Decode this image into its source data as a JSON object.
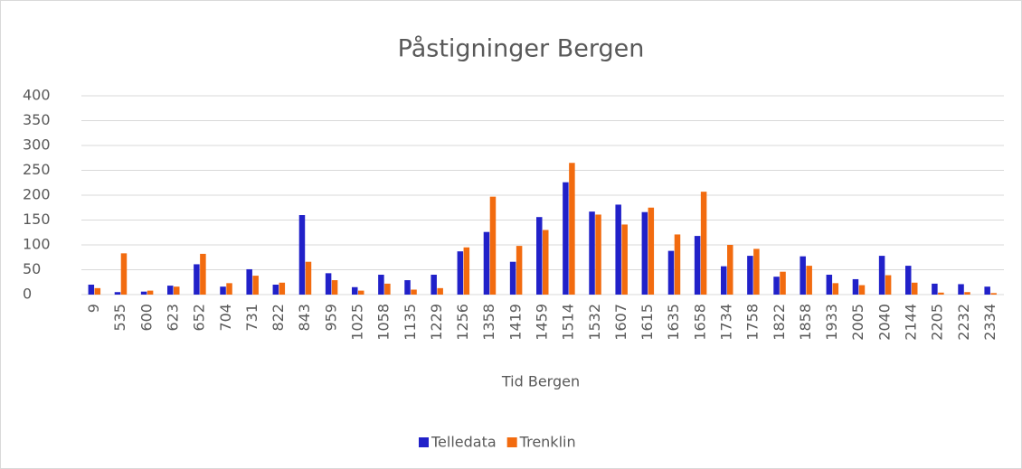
{
  "chart_data": {
    "type": "bar",
    "title": "Påstigninger Bergen",
    "x_label": "Tid Bergen",
    "categories": [
      "9",
      "535",
      "600",
      "623",
      "652",
      "704",
      "731",
      "822",
      "843",
      "959",
      "1025",
      "1058",
      "1135",
      "1229",
      "1256",
      "1358",
      "1419",
      "1459",
      "1514",
      "1532",
      "1607",
      "1615",
      "1635",
      "1658",
      "1734",
      "1758",
      "1822",
      "1858",
      "1933",
      "2005",
      "2040",
      "2144",
      "2205",
      "2232",
      "2334"
    ],
    "series": [
      {
        "name": "Telledata",
        "color": "#2121c9",
        "values": [
          20,
          5,
          6,
          18,
          61,
          16,
          51,
          20,
          160,
          43,
          15,
          40,
          29,
          40,
          87,
          126,
          66,
          156,
          226,
          167,
          181,
          166,
          88,
          118,
          57,
          78,
          36,
          77,
          40,
          31,
          78,
          58,
          22,
          21,
          16
        ]
      },
      {
        "name": "Trenklin",
        "color": "#f26b0f",
        "values": [
          13,
          83,
          8,
          16,
          82,
          23,
          38,
          24,
          66,
          29,
          8,
          22,
          10,
          13,
          95,
          197,
          98,
          130,
          265,
          161,
          141,
          175,
          121,
          207,
          100,
          92,
          46,
          58,
          23,
          19,
          39,
          24,
          4,
          5,
          3
        ]
      }
    ],
    "ylim": [
      0,
      400
    ],
    "yticks": [
      0,
      50,
      100,
      150,
      200,
      250,
      300,
      350,
      400
    ],
    "grid": true,
    "legend": "bottom"
  }
}
